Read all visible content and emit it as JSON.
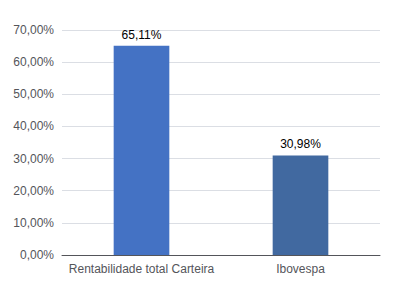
{
  "chart_data": {
    "type": "bar",
    "categories": [
      "Rentabilidade total Carteira",
      "Ibovespa"
    ],
    "values": [
      65.11,
      30.98
    ],
    "value_labels": [
      "65,11%",
      "30,98%"
    ],
    "data_labels": true,
    "colors": [
      "#4472C4",
      "#4169A0"
    ],
    "ylim": [
      0,
      70
    ],
    "yticks": [
      {
        "value": 0,
        "label": "0,00%"
      },
      {
        "value": 10,
        "label": "10,00%"
      },
      {
        "value": 20,
        "label": "20,00%"
      },
      {
        "value": 30,
        "label": "30,00%"
      },
      {
        "value": 40,
        "label": "40,00%"
      },
      {
        "value": 50,
        "label": "50,00%"
      },
      {
        "value": 60,
        "label": "60,00%"
      },
      {
        "value": 70,
        "label": "70,00%"
      }
    ],
    "grid": true
  }
}
